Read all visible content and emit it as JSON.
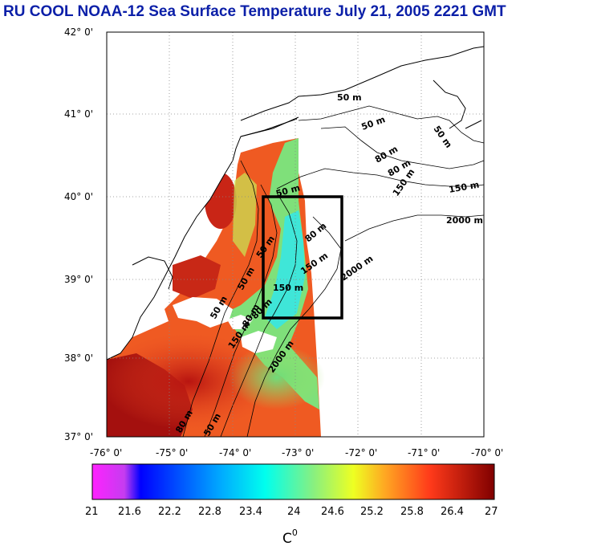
{
  "title": "RU COOL  NOAA-12 Sea Surface Temperature July 21, 2005 2221 GMT",
  "title_color": "#0b1fa8",
  "map": {
    "lon_labels": [
      "-76° 0'",
      "-75° 0'",
      "-74° 0'",
      "-73° 0'",
      "-72° 0'",
      "-71° 0'",
      "-70° 0'"
    ],
    "lat_labels": [
      "42° 0'",
      "41° 0'",
      "40° 0'",
      "39° 0'",
      "38° 0'",
      "37° 0'"
    ],
    "contour_labels": [
      {
        "text": "50 m"
      },
      {
        "text": "50 m"
      },
      {
        "text": "50 m"
      },
      {
        "text": "80 m"
      },
      {
        "text": "80 m"
      },
      {
        "text": "150 m"
      },
      {
        "text": "150 m"
      },
      {
        "text": "2000 m"
      },
      {
        "text": "50 m"
      },
      {
        "text": "80 m"
      },
      {
        "text": "50 m"
      },
      {
        "text": "150 m"
      },
      {
        "text": "2000 m"
      },
      {
        "text": "50 m"
      },
      {
        "text": "80 m"
      },
      {
        "text": "150 m"
      },
      {
        "text": "2000 m"
      },
      {
        "text": "50 m"
      },
      {
        "text": "150 m"
      },
      {
        "text": "80 m"
      },
      {
        "text": "80 m"
      },
      {
        "text": "50 m"
      }
    ],
    "study_box": {
      "lon_min": -73.55,
      "lon_max": -72.15,
      "lat_min": 38.5,
      "lat_max": 40.0
    }
  },
  "colorbar": {
    "tick_labels": [
      "21",
      "21.6",
      "22.2",
      "22.8",
      "23.4",
      "24",
      "24.6",
      "25.2",
      "25.8",
      "26.4",
      "27"
    ],
    "min": 21,
    "max": 27,
    "unit_label": "C",
    "unit_superscript": "0"
  }
}
